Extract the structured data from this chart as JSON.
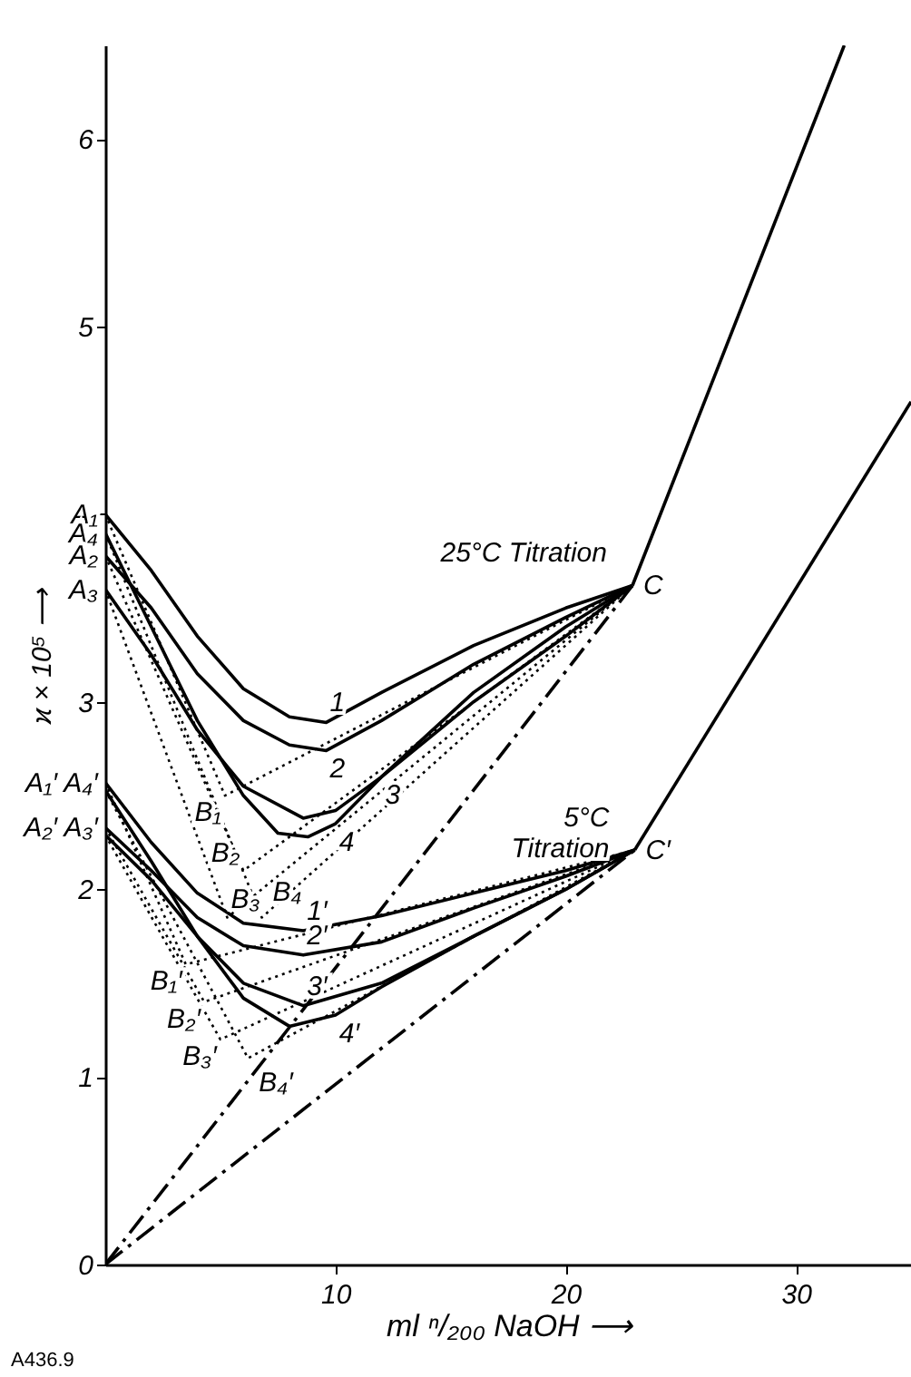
{
  "chart_data": {
    "type": "line",
    "xlabel": "ml ⁿ/₂₀₀ NaOH ⟶",
    "ylabel": "ϰ × 10⁵ ⟶",
    "xlim": [
      0,
      35
    ],
    "ylim": [
      0,
      6.5
    ],
    "xticks": [
      10,
      20,
      30
    ],
    "yticks": [
      0,
      1,
      2,
      3,
      {
        "value": 4,
        "label": null
      },
      5,
      6
    ],
    "series": [
      {
        "name": "1",
        "color": "#000000",
        "line_style": "solid",
        "x": [
          0,
          2,
          4,
          6,
          8,
          9.6,
          12,
          16,
          20,
          22.9
        ],
        "values": [
          4.0,
          3.7,
          3.35,
          3.07,
          2.92,
          2.89,
          3.05,
          3.3,
          3.5,
          3.62
        ]
      },
      {
        "name": "2",
        "color": "#000000",
        "line_style": "solid",
        "x": [
          0,
          2,
          4,
          6,
          8,
          9.6,
          12,
          16,
          20,
          22.9
        ],
        "values": [
          3.78,
          3.5,
          3.15,
          2.9,
          2.77,
          2.74,
          2.9,
          3.2,
          3.45,
          3.62
        ]
      },
      {
        "name": "3",
        "color": "#000000",
        "line_style": "solid",
        "x": [
          0,
          2,
          4,
          6,
          8.6,
          10,
          12,
          16,
          20,
          22.9
        ],
        "values": [
          3.6,
          3.25,
          2.85,
          2.55,
          2.38,
          2.42,
          2.6,
          3.0,
          3.35,
          3.62
        ]
      },
      {
        "name": "4",
        "color": "#000000",
        "line_style": "solid",
        "x": [
          0,
          2,
          4,
          6,
          7.5,
          8.8,
          10,
          12,
          16,
          20,
          22.9
        ],
        "values": [
          3.9,
          3.4,
          2.9,
          2.5,
          2.3,
          2.28,
          2.35,
          2.6,
          3.05,
          3.4,
          3.62
        ]
      },
      {
        "name": "1′",
        "color": "#000000",
        "line_style": "solid",
        "x": [
          0,
          2,
          4,
          6,
          8.6,
          12,
          16,
          20,
          23
        ],
        "values": [
          2.57,
          2.25,
          1.98,
          1.82,
          1.78,
          1.86,
          1.98,
          2.1,
          2.21
        ]
      },
      {
        "name": "2′",
        "color": "#000000",
        "line_style": "solid",
        "x": [
          0,
          2,
          4,
          6,
          8.6,
          12,
          16,
          20,
          23
        ],
        "values": [
          2.33,
          2.1,
          1.85,
          1.7,
          1.65,
          1.72,
          1.9,
          2.07,
          2.21
        ]
      },
      {
        "name": "3′",
        "color": "#000000",
        "line_style": "solid",
        "x": [
          0,
          2,
          4,
          6,
          8.6,
          12,
          16,
          20,
          23
        ],
        "values": [
          2.29,
          2.05,
          1.75,
          1.5,
          1.38,
          1.5,
          1.75,
          2.0,
          2.21
        ]
      },
      {
        "name": "4′",
        "color": "#000000",
        "line_style": "solid",
        "x": [
          0,
          2,
          4,
          6,
          8,
          10,
          12,
          16,
          20,
          23
        ],
        "values": [
          2.53,
          2.15,
          1.75,
          1.42,
          1.27,
          1.33,
          1.48,
          1.75,
          2.0,
          2.21
        ]
      },
      {
        "color": "#000000",
        "line_style": "solid",
        "x": [
          22.9,
          32.1
        ],
        "values": [
          3.62,
          6.5
        ]
      },
      {
        "color": "#000000",
        "line_style": "solid",
        "x": [
          23,
          35
        ],
        "values": [
          2.21,
          4.6
        ]
      },
      {
        "color": "#000000",
        "line_style": "dashed",
        "x": [
          0,
          22.9
        ],
        "values": [
          0,
          3.62
        ]
      },
      {
        "color": "#000000",
        "line_style": "dashed",
        "x": [
          0,
          23
        ],
        "values": [
          0,
          2.21
        ]
      },
      {
        "color": "#000000",
        "line_style": "dotted",
        "x": [
          0,
          5.2,
          22.9
        ],
        "values": [
          4.0,
          2.5,
          3.62
        ]
      },
      {
        "color": "#000000",
        "line_style": "dotted",
        "x": [
          0,
          6,
          22.9
        ],
        "values": [
          3.78,
          2.1,
          3.62
        ]
      },
      {
        "color": "#000000",
        "line_style": "dotted",
        "x": [
          0,
          5.3,
          22.9
        ],
        "values": [
          3.6,
          1.85,
          3.62
        ]
      },
      {
        "color": "#000000",
        "line_style": "dotted",
        "x": [
          0,
          6.8,
          22.9
        ],
        "values": [
          3.9,
          1.85,
          3.62
        ]
      },
      {
        "color": "#000000",
        "line_style": "dotted",
        "x": [
          0,
          3.5,
          23
        ],
        "values": [
          2.57,
          1.6,
          2.21
        ]
      },
      {
        "color": "#000000",
        "line_style": "dotted",
        "x": [
          0,
          4.3,
          23
        ],
        "values": [
          2.33,
          1.4,
          2.21
        ]
      },
      {
        "color": "#000000",
        "line_style": "dotted",
        "x": [
          0,
          5.0,
          23
        ],
        "values": [
          2.29,
          1.2,
          2.21
        ]
      },
      {
        "color": "#000000",
        "line_style": "dotted",
        "x": [
          0,
          6.2,
          23
        ],
        "values": [
          2.53,
          1.1,
          2.21
        ]
      }
    ],
    "annotations": [
      {
        "text": "A₁",
        "x": 0,
        "y": 4.0
      },
      {
        "text": "A₄",
        "x": 0,
        "y": 3.9
      },
      {
        "text": "A₂",
        "x": 0,
        "y": 3.78
      },
      {
        "text": "A₃",
        "x": 0,
        "y": 3.6
      },
      {
        "text": "A₁′ A₄′",
        "x": 0,
        "y": 2.57
      },
      {
        "text": "A₂′ A₃′",
        "x": 0,
        "y": 2.33
      },
      {
        "text": "B₁",
        "x": 5.2,
        "y": 2.5
      },
      {
        "text": "B₂",
        "x": 6,
        "y": 2.1
      },
      {
        "text": "B₃",
        "x": 5.3,
        "y": 1.85
      },
      {
        "text": "B₄",
        "x": 6.8,
        "y": 1.85
      },
      {
        "text": "B₁′",
        "x": 3.5,
        "y": 1.6
      },
      {
        "text": "B₂′",
        "x": 4.3,
        "y": 1.4
      },
      {
        "text": "B₃′",
        "x": 5.0,
        "y": 1.2
      },
      {
        "text": "B₄′",
        "x": 6.2,
        "y": 1.1
      },
      {
        "text": "C",
        "x": 22.9,
        "y": 3.62
      },
      {
        "text": "C′",
        "x": 23,
        "y": 2.21
      },
      {
        "text": "25°C Titration",
        "x": 22.9,
        "y": 3.62
      },
      {
        "text": "5°C\nTitration",
        "x": 23,
        "y": 2.21
      },
      "A436.9"
    ]
  }
}
